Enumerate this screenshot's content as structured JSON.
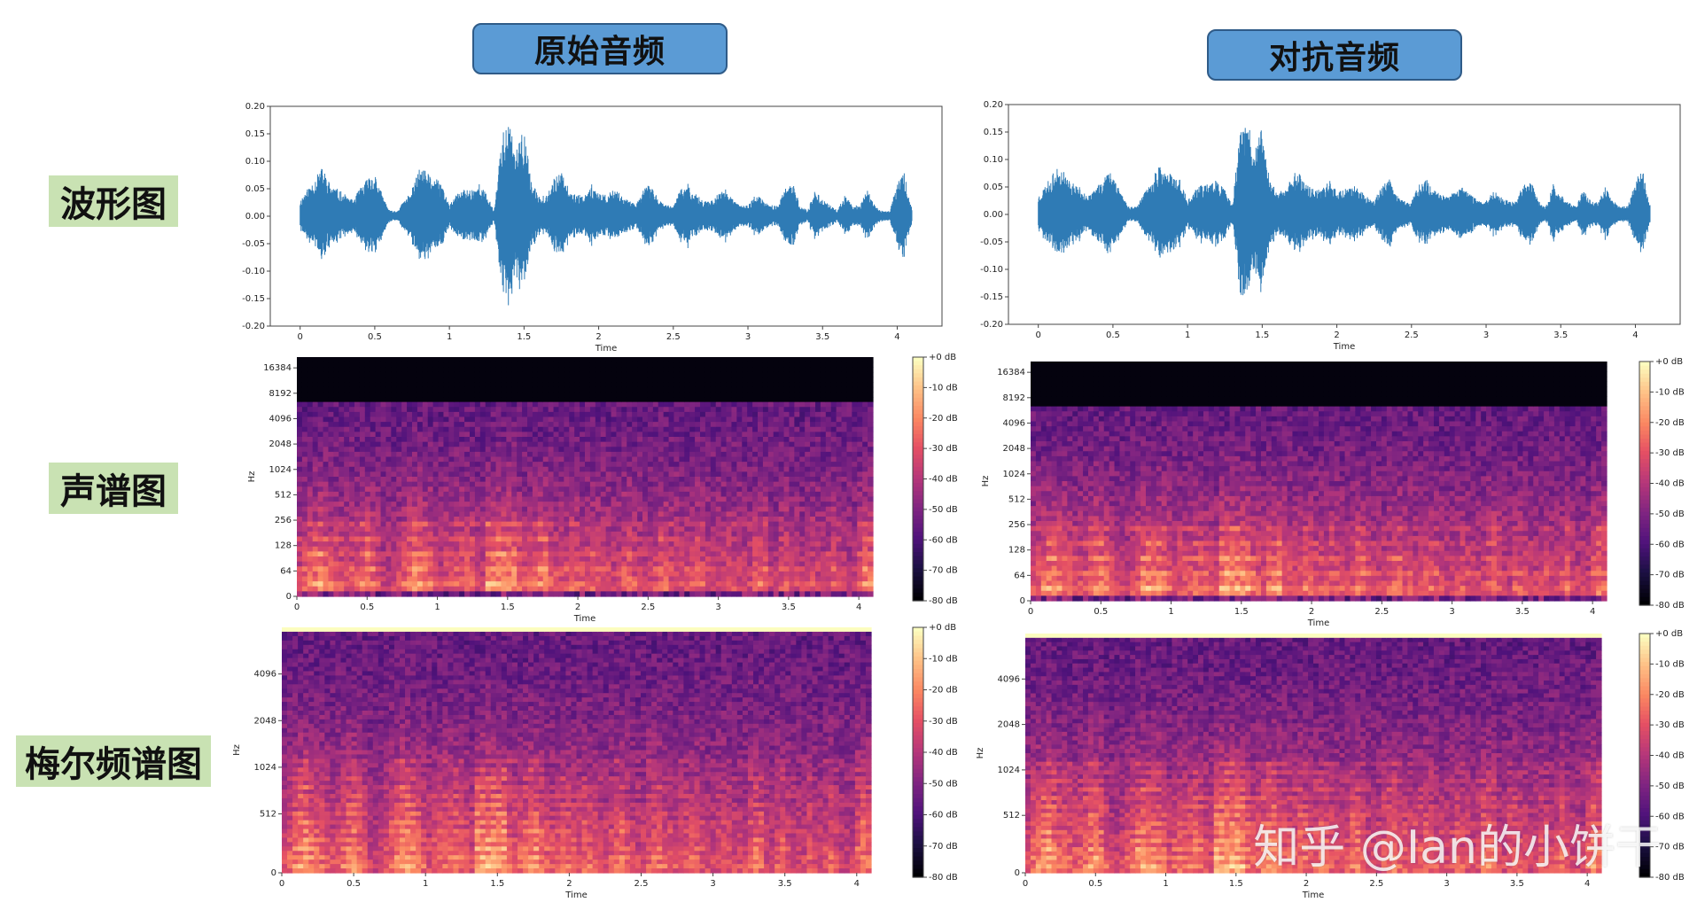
{
  "headers": {
    "original": "原始音频",
    "adversarial": "对抗音频"
  },
  "row_labels": {
    "waveform": "波形图",
    "spectrogram": "声谱图",
    "mel": "梅尔频谱图"
  },
  "watermark": "知乎 @Ian的小饼干",
  "colors": {
    "waveform": "#2f7bb5",
    "header_fill": "#5b9bd5",
    "label_fill": "#c9e2b3"
  },
  "chart_data": [
    {
      "id": "orig-wave",
      "type": "line",
      "column": "original",
      "row": "waveform",
      "xlabel": "Time",
      "ylabel": "",
      "xlim": [
        -0.2,
        4.3
      ],
      "ylim": [
        -0.2,
        0.2
      ],
      "xticks": [
        "0",
        "0.5",
        "1",
        "1.5",
        "2",
        "2.5",
        "3",
        "3.5",
        "4"
      ],
      "yticks": [
        "0.20",
        "0.15",
        "0.10",
        "0.05",
        "0.00",
        "-0.05",
        "-0.10",
        "-0.15",
        "-0.20"
      ],
      "envelope": {
        "x": [
          0.0,
          0.1,
          0.15,
          0.2,
          0.25,
          0.35,
          0.45,
          0.5,
          0.55,
          0.6,
          0.65,
          0.75,
          0.8,
          0.85,
          0.9,
          0.95,
          1.0,
          1.05,
          1.1,
          1.15,
          1.2,
          1.25,
          1.3,
          1.35,
          1.4,
          1.45,
          1.5,
          1.55,
          1.6,
          1.65,
          1.7,
          1.75,
          1.8,
          1.85,
          1.9,
          1.95,
          2.0,
          2.05,
          2.1,
          2.15,
          2.2,
          2.25,
          2.3,
          2.35,
          2.4,
          2.45,
          2.5,
          2.55,
          2.6,
          2.65,
          2.7,
          2.75,
          2.8,
          2.85,
          2.9,
          2.95,
          3.0,
          3.05,
          3.1,
          3.15,
          3.2,
          3.25,
          3.3,
          3.35,
          3.4,
          3.45,
          3.5,
          3.55,
          3.6,
          3.65,
          3.7,
          3.75,
          3.8,
          3.85,
          3.9,
          3.95,
          4.0,
          4.05,
          4.1
        ],
        "amp": [
          0.03,
          0.07,
          0.09,
          0.06,
          0.05,
          0.03,
          0.07,
          0.08,
          0.04,
          0.01,
          0.01,
          0.05,
          0.09,
          0.08,
          0.07,
          0.06,
          0.02,
          0.04,
          0.05,
          0.05,
          0.06,
          0.04,
          0.01,
          0.15,
          0.17,
          0.12,
          0.16,
          0.06,
          0.04,
          0.04,
          0.07,
          0.08,
          0.05,
          0.04,
          0.04,
          0.06,
          0.04,
          0.04,
          0.05,
          0.04,
          0.03,
          0.02,
          0.05,
          0.06,
          0.03,
          0.02,
          0.02,
          0.05,
          0.06,
          0.04,
          0.03,
          0.03,
          0.04,
          0.05,
          0.03,
          0.02,
          0.02,
          0.04,
          0.03,
          0.02,
          0.02,
          0.05,
          0.06,
          0.02,
          0.01,
          0.05,
          0.03,
          0.02,
          0.01,
          0.04,
          0.02,
          0.02,
          0.05,
          0.02,
          0.01,
          0.01,
          0.06,
          0.08,
          0.01
        ]
      }
    },
    {
      "id": "adv-wave",
      "type": "line",
      "column": "adversarial",
      "row": "waveform",
      "xlabel": "Time",
      "ylabel": "",
      "xlim": [
        -0.2,
        4.3
      ],
      "ylim": [
        -0.2,
        0.2
      ],
      "xticks": [
        "0",
        "0.5",
        "1",
        "1.5",
        "2",
        "2.5",
        "3",
        "3.5",
        "4"
      ],
      "yticks": [
        "0.20",
        "0.15",
        "0.10",
        "0.05",
        "0.00",
        "-0.05",
        "-0.10",
        "-0.15",
        "-0.20"
      ],
      "envelope": {
        "x": [
          0.0,
          0.1,
          0.15,
          0.2,
          0.25,
          0.35,
          0.45,
          0.5,
          0.55,
          0.6,
          0.65,
          0.75,
          0.8,
          0.85,
          0.9,
          0.95,
          1.0,
          1.05,
          1.1,
          1.15,
          1.2,
          1.25,
          1.3,
          1.35,
          1.4,
          1.45,
          1.5,
          1.55,
          1.6,
          1.65,
          1.7,
          1.75,
          1.8,
          1.85,
          1.9,
          1.95,
          2.0,
          2.05,
          2.1,
          2.15,
          2.2,
          2.25,
          2.3,
          2.35,
          2.4,
          2.45,
          2.5,
          2.55,
          2.6,
          2.65,
          2.7,
          2.75,
          2.8,
          2.85,
          2.9,
          2.95,
          3.0,
          3.05,
          3.1,
          3.15,
          3.2,
          3.25,
          3.3,
          3.35,
          3.4,
          3.45,
          3.5,
          3.55,
          3.6,
          3.65,
          3.7,
          3.75,
          3.8,
          3.85,
          3.9,
          3.95,
          4.0,
          4.05,
          4.1
        ],
        "amp": [
          0.035,
          0.075,
          0.09,
          0.065,
          0.055,
          0.035,
          0.075,
          0.08,
          0.045,
          0.015,
          0.015,
          0.055,
          0.09,
          0.08,
          0.075,
          0.065,
          0.025,
          0.045,
          0.055,
          0.055,
          0.065,
          0.045,
          0.015,
          0.15,
          0.17,
          0.12,
          0.16,
          0.065,
          0.045,
          0.045,
          0.075,
          0.08,
          0.055,
          0.045,
          0.045,
          0.065,
          0.045,
          0.045,
          0.055,
          0.045,
          0.035,
          0.025,
          0.055,
          0.065,
          0.035,
          0.025,
          0.025,
          0.055,
          0.065,
          0.045,
          0.035,
          0.035,
          0.045,
          0.055,
          0.035,
          0.025,
          0.025,
          0.045,
          0.035,
          0.025,
          0.025,
          0.055,
          0.065,
          0.025,
          0.015,
          0.055,
          0.035,
          0.025,
          0.015,
          0.045,
          0.025,
          0.025,
          0.055,
          0.025,
          0.015,
          0.015,
          0.065,
          0.08,
          0.015
        ]
      }
    },
    {
      "id": "orig-spec",
      "type": "heatmap",
      "column": "original",
      "row": "spectrogram",
      "xlabel": "Time",
      "ylabel": "Hz",
      "xlim": [
        0,
        4.1
      ],
      "yscale": "log",
      "xticks": [
        "0",
        "0.5",
        "1",
        "1.5",
        "2",
        "2.5",
        "3",
        "3.5",
        "4"
      ],
      "yticks": [
        "16384",
        "8192",
        "4096",
        "2048",
        "1024",
        "512",
        "256",
        "128",
        "64",
        "0"
      ],
      "colorbar": {
        "label_ticks": [
          "+0 dB",
          "-10 dB",
          "-20 dB",
          "-30 dB",
          "-40 dB",
          "-50 dB",
          "-60 dB",
          "-70 dB",
          "-80 dB"
        ],
        "range": [
          -80,
          0
        ]
      }
    },
    {
      "id": "adv-spec",
      "type": "heatmap",
      "column": "adversarial",
      "row": "spectrogram",
      "xlabel": "Time",
      "ylabel": "Hz",
      "xlim": [
        0,
        4.1
      ],
      "yscale": "log",
      "xticks": [
        "0",
        "0.5",
        "1",
        "1.5",
        "2",
        "2.5",
        "3",
        "3.5",
        "4"
      ],
      "yticks": [
        "16384",
        "8192",
        "4096",
        "2048",
        "1024",
        "512",
        "256",
        "128",
        "64",
        "0"
      ],
      "colorbar": {
        "label_ticks": [
          "+0 dB",
          "-10 dB",
          "-20 dB",
          "-30 dB",
          "-40 dB",
          "-50 dB",
          "-60 dB",
          "-70 dB",
          "-80 dB"
        ],
        "range": [
          -80,
          0
        ]
      }
    },
    {
      "id": "orig-mel",
      "type": "heatmap",
      "column": "original",
      "row": "mel",
      "xlabel": "Time",
      "ylabel": "Hz",
      "xlim": [
        0,
        4.1
      ],
      "yscale": "mel",
      "xticks": [
        "0",
        "0.5",
        "1",
        "1.5",
        "2",
        "2.5",
        "3",
        "3.5",
        "4"
      ],
      "yticks": [
        "4096",
        "2048",
        "1024",
        "512",
        "0"
      ],
      "colorbar": {
        "label_ticks": [
          "+0 dB",
          "-10 dB",
          "-20 dB",
          "-30 dB",
          "-40 dB",
          "-50 dB",
          "-60 dB",
          "-70 dB",
          "-80 dB"
        ],
        "range": [
          -80,
          0
        ]
      }
    },
    {
      "id": "adv-mel",
      "type": "heatmap",
      "column": "adversarial",
      "row": "mel",
      "xlabel": "Time",
      "ylabel": "Hz",
      "xlim": [
        0,
        4.1
      ],
      "yscale": "mel",
      "xticks": [
        "0",
        "0.5",
        "1",
        "1.5",
        "2",
        "2.5",
        "3",
        "3.5",
        "4"
      ],
      "yticks": [
        "4096",
        "2048",
        "1024",
        "512",
        "0"
      ],
      "colorbar": {
        "label_ticks": [
          "+0 dB",
          "-10 dB",
          "-20 dB",
          "-30 dB",
          "-40 dB",
          "-50 dB",
          "-60 dB",
          "-70 dB",
          "-80 dB"
        ],
        "range": [
          -80,
          0
        ]
      }
    }
  ]
}
